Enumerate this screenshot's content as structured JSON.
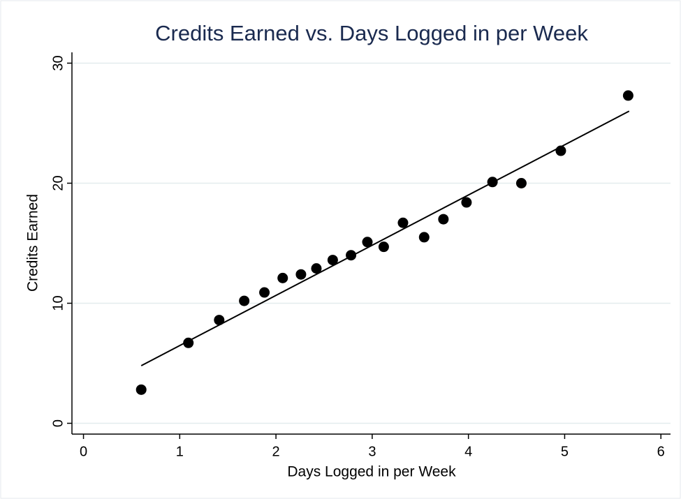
{
  "chart_data": {
    "type": "scatter",
    "title": "Credits Earned vs. Days Logged in per Week",
    "x_label": "Days Logged in per Week",
    "y_label": "Credits Earned",
    "xlim": [
      -0.12,
      6.1
    ],
    "ylim": [
      -0.9,
      30.9
    ],
    "xticks": [
      0,
      1,
      2,
      3,
      4,
      5,
      6
    ],
    "yticks": [
      0,
      10,
      20,
      30
    ],
    "grid": true,
    "series": [
      {
        "type": "scatter",
        "color": "#000000",
        "x": [
          0.6,
          1.09,
          1.41,
          1.67,
          1.88,
          2.07,
          2.26,
          2.42,
          2.59,
          2.78,
          2.95,
          3.12,
          3.32,
          3.54,
          3.74,
          3.98,
          4.25,
          4.55,
          4.96,
          5.66
        ],
        "values": [
          2.8,
          6.7,
          8.6,
          10.2,
          10.9,
          12.1,
          12.4,
          12.9,
          13.6,
          14.0,
          15.1,
          14.7,
          16.7,
          15.5,
          17.0,
          18.4,
          20.1,
          20.0,
          22.7,
          27.3
        ]
      },
      {
        "type": "line",
        "color": "#000000",
        "x": [
          0.6,
          5.67
        ],
        "values": [
          4.8,
          26.0
        ]
      }
    ]
  }
}
